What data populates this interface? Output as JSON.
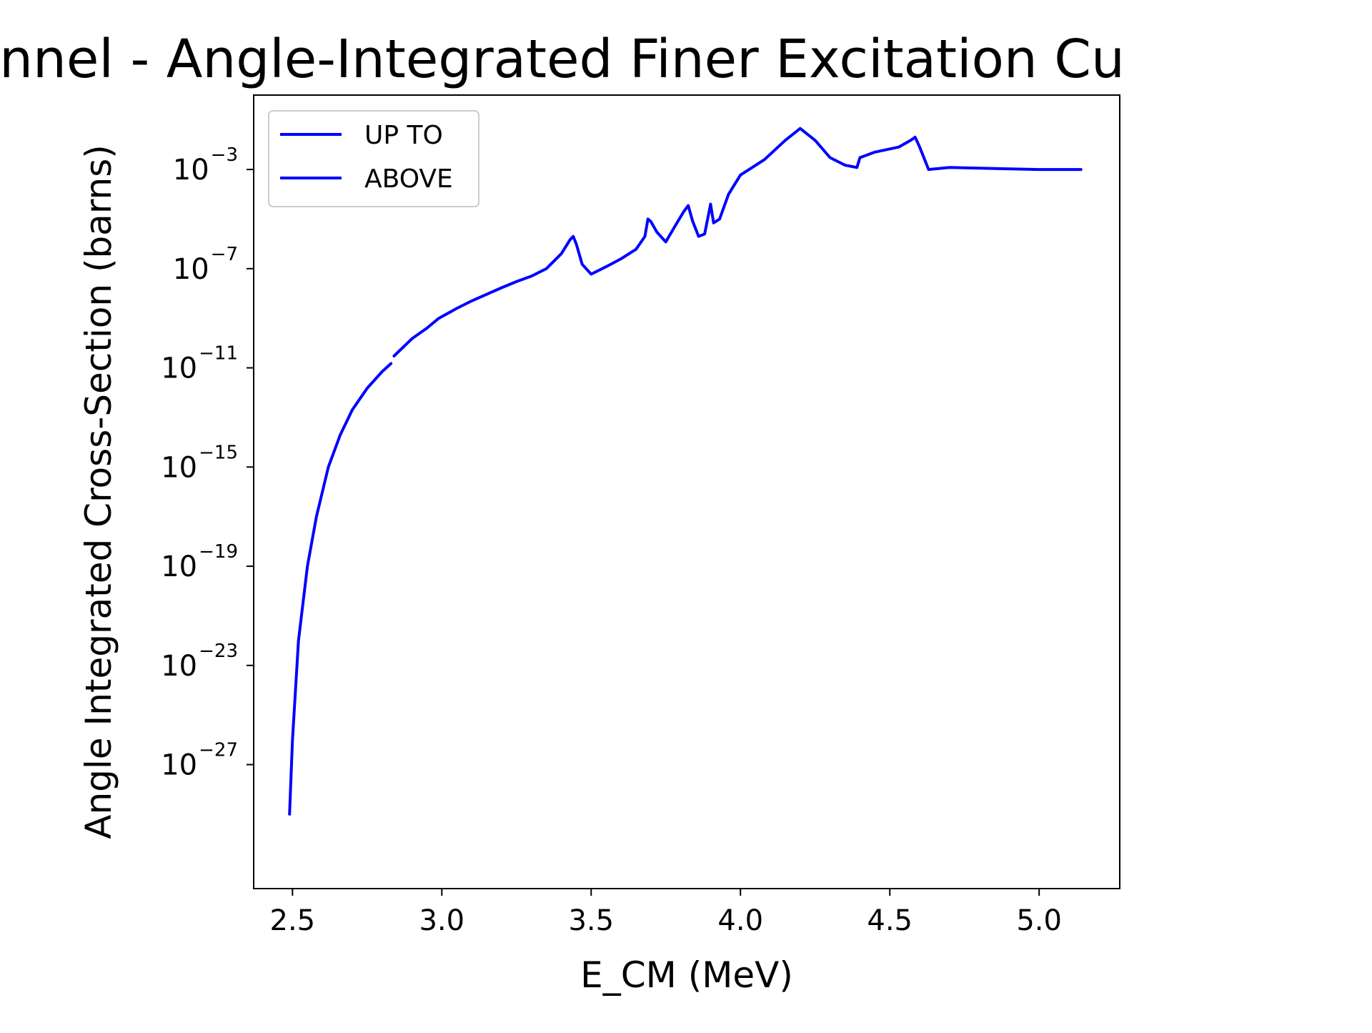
{
  "chart_data": {
    "type": "line",
    "title": "channel - Angle-Integrated Finer Excitation Cu",
    "xlabel": "E_CM (MeV)",
    "ylabel": "Angle Integrated Cross-Section (barns)",
    "xlim": [
      2.37,
      5.27
    ],
    "ylim": [
      1e-32,
      1.0
    ],
    "yscale": "log",
    "grid": false,
    "legend_position": "top-left",
    "xticks": [
      {
        "value": 2.5,
        "label": "2.5"
      },
      {
        "value": 3.0,
        "label": "3.0"
      },
      {
        "value": 3.5,
        "label": "3.5"
      },
      {
        "value": 4.0,
        "label": "4.0"
      },
      {
        "value": 4.5,
        "label": "4.5"
      },
      {
        "value": 5.0,
        "label": "5.0"
      }
    ],
    "yticks": [
      {
        "exponent": -3,
        "base": "10",
        "exp": "−3"
      },
      {
        "exponent": -7,
        "base": "10",
        "exp": "−7"
      },
      {
        "exponent": -11,
        "base": "10",
        "exp": "−11"
      },
      {
        "exponent": -15,
        "base": "10",
        "exp": "−15"
      },
      {
        "exponent": -19,
        "base": "10",
        "exp": "−19"
      },
      {
        "exponent": -23,
        "base": "10",
        "exp": "−23"
      },
      {
        "exponent": -27,
        "base": "10",
        "exp": "−27"
      }
    ],
    "series": [
      {
        "name": "UP TO",
        "color": "#0000ff",
        "x": [
          2.49,
          2.5,
          2.52,
          2.55,
          2.58,
          2.62,
          2.66,
          2.7,
          2.75,
          2.8,
          2.83
        ],
        "y": [
          1e-29,
          1e-26,
          1e-22,
          1e-19,
          1e-17,
          1e-15,
          2e-14,
          2e-13,
          1.5e-12,
          7e-12,
          1.5e-11
        ]
      },
      {
        "name": "ABOVE",
        "color": "#0000ff",
        "x": [
          2.84,
          2.9,
          2.95,
          2.99,
          3.05,
          3.1,
          3.2,
          3.25,
          3.3,
          3.35,
          3.4,
          3.43,
          3.44,
          3.45,
          3.47,
          3.5,
          3.55,
          3.6,
          3.65,
          3.68,
          3.69,
          3.7,
          3.72,
          3.75,
          3.78,
          3.81,
          3.825,
          3.84,
          3.86,
          3.88,
          3.9,
          3.91,
          3.93,
          3.96,
          4.0,
          4.08,
          4.15,
          4.2,
          4.25,
          4.3,
          4.35,
          4.39,
          4.4,
          4.45,
          4.53,
          4.57,
          4.585,
          4.6,
          4.63,
          4.7,
          5.0,
          5.14
        ],
        "y": [
          3e-11,
          1.5e-10,
          4e-10,
          1e-09,
          2.5e-09,
          5e-09,
          1.7e-08,
          3e-08,
          5e-08,
          1e-07,
          4e-07,
          1.5e-06,
          2e-06,
          1e-06,
          1.5e-07,
          6e-08,
          1.2e-07,
          2.5e-07,
          6e-07,
          2e-06,
          1e-05,
          8e-06,
          3e-06,
          1.2e-06,
          5e-06,
          2e-05,
          3.5e-05,
          8e-06,
          2e-06,
          2.5e-06,
          4e-05,
          7e-06,
          1e-05,
          0.0001,
          0.0006,
          0.0025,
          0.015,
          0.045,
          0.015,
          0.003,
          0.0015,
          0.0012,
          0.003,
          0.005,
          0.008,
          0.015,
          0.02,
          0.008,
          0.001,
          0.0012,
          0.001,
          0.001
        ]
      }
    ]
  }
}
